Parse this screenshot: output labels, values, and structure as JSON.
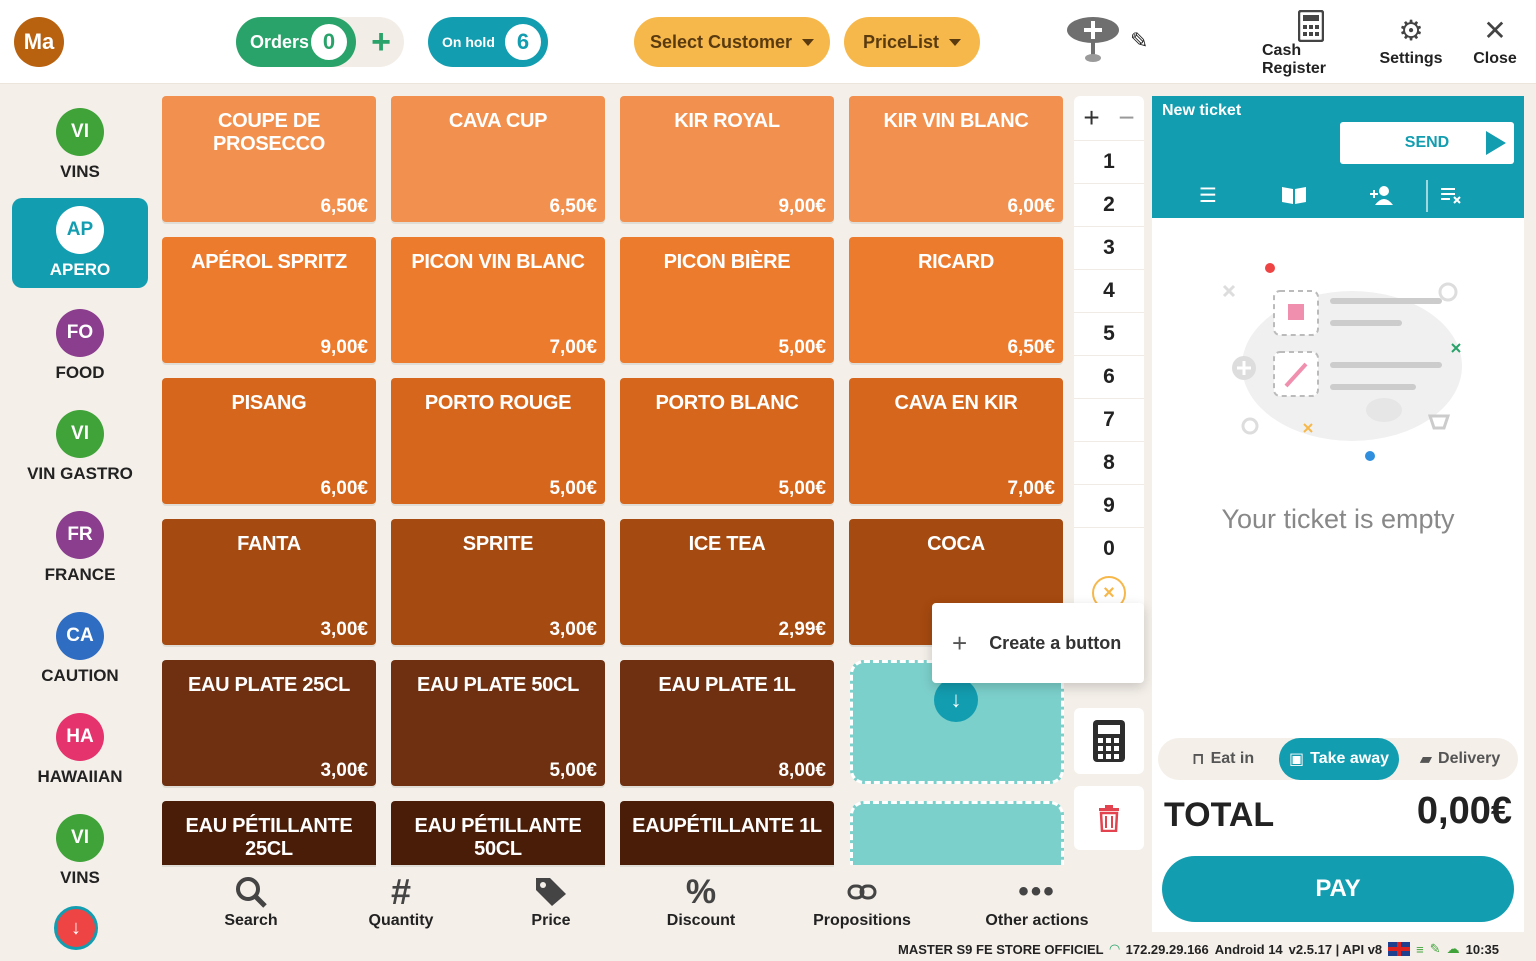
{
  "header": {
    "logo": "Ma",
    "orders_label": "Orders",
    "orders_count": "0",
    "onhold_label": "On hold",
    "onhold_count": "6",
    "select_customer": "Select Customer",
    "pricelist": "PriceList",
    "cash_register": "Cash Register",
    "settings": "Settings",
    "close": "Close"
  },
  "colors": {
    "teal": "#139db0",
    "green": "#29a36a",
    "yellow": "#f7b84b",
    "orange_light": "#f2914f",
    "orange": "#ed7b2d",
    "orange_dark": "#d6661b",
    "brown": "#a54a10",
    "brown_dark": "#6e3010",
    "brown_darkest": "#4a1d08"
  },
  "categories": [
    {
      "badge": "VI",
      "label": "VINS",
      "color": "#3fa33a"
    },
    {
      "badge": "AP",
      "label": "APERO",
      "color": "#139db0",
      "active": true
    },
    {
      "badge": "FO",
      "label": "FOOD",
      "color": "#8b3d8e"
    },
    {
      "badge": "VI",
      "label": "VIN GASTRO",
      "color": "#3fa33a"
    },
    {
      "badge": "FR",
      "label": "FRANCE",
      "color": "#8b3d8e"
    },
    {
      "badge": "CA",
      "label": "CAUTION",
      "color": "#2f6dc2"
    },
    {
      "badge": "HA",
      "label": "HAWAIIAN",
      "color": "#e5336e"
    },
    {
      "badge": "VI",
      "label": "VINS",
      "color": "#3fa33a"
    }
  ],
  "products": [
    [
      {
        "name": "COUPE DE PROSECCO",
        "price": "6,50€"
      },
      {
        "name": "CAVA CUP",
        "price": "6,50€"
      },
      {
        "name": "KIR ROYAL",
        "price": "9,00€"
      },
      {
        "name": "KIR VIN BLANC",
        "price": "6,00€"
      }
    ],
    [
      {
        "name": "APÉROL SPRITZ",
        "price": "9,00€"
      },
      {
        "name": "PICON VIN BLANC",
        "price": "7,00€"
      },
      {
        "name": "PICON BIÈRE",
        "price": "5,00€"
      },
      {
        "name": "RICARD",
        "price": "6,50€"
      }
    ],
    [
      {
        "name": "PISANG",
        "price": "6,00€"
      },
      {
        "name": "PORTO ROUGE",
        "price": "5,00€"
      },
      {
        "name": "PORTO BLANC",
        "price": "5,00€"
      },
      {
        "name": "CAVA EN KIR",
        "price": "7,00€"
      }
    ],
    [
      {
        "name": "FANTA",
        "price": "3,00€"
      },
      {
        "name": "SPRITE",
        "price": "3,00€"
      },
      {
        "name": "ICE TEA",
        "price": "2,99€"
      },
      {
        "name": "COCA",
        "price": ""
      }
    ],
    [
      {
        "name": "EAU PLATE 25CL",
        "price": "3,00€"
      },
      {
        "name": "EAU PLATE 50CL",
        "price": "5,00€"
      },
      {
        "name": "EAU PLATE 1L",
        "price": "8,00€"
      }
    ],
    [
      {
        "name": "EAU PÉTILLANTE 25CL",
        "price": ""
      },
      {
        "name": "EAU PÉTILLANTE 50CL",
        "price": ""
      },
      {
        "name": "EAUPÉTILLANTE 1L",
        "price": ""
      }
    ]
  ],
  "keypad": {
    "keys": [
      "1",
      "2",
      "3",
      "4",
      "5",
      "6",
      "7",
      "8",
      "9",
      "0"
    ],
    "plus": "+",
    "minus": "−",
    "clear": "×"
  },
  "popup": {
    "create_button": "Create a button"
  },
  "toolbar": [
    {
      "label": "Search",
      "icon": "search-icon"
    },
    {
      "label": "Quantity",
      "icon": "hash-icon"
    },
    {
      "label": "Price",
      "icon": "tag-icon"
    },
    {
      "label": "Discount",
      "icon": "percent-icon"
    },
    {
      "label": "Propositions",
      "icon": "link-icon"
    },
    {
      "label": "Other actions",
      "icon": "more-icon"
    }
  ],
  "status": {
    "store": "MASTER S9 FE STORE OFFICIEL",
    "ip": "172.29.29.166",
    "android": "Android 14",
    "version": "v2.5.17 | API v8",
    "time": "10:35"
  },
  "ticket": {
    "title": "New ticket",
    "send": "SEND",
    "empty": "Your ticket is empty",
    "eat_in": "Eat in",
    "take_away": "Take away",
    "delivery": "Delivery",
    "total_label": "TOTAL",
    "total_value": "0,00€",
    "pay": "PAY"
  }
}
